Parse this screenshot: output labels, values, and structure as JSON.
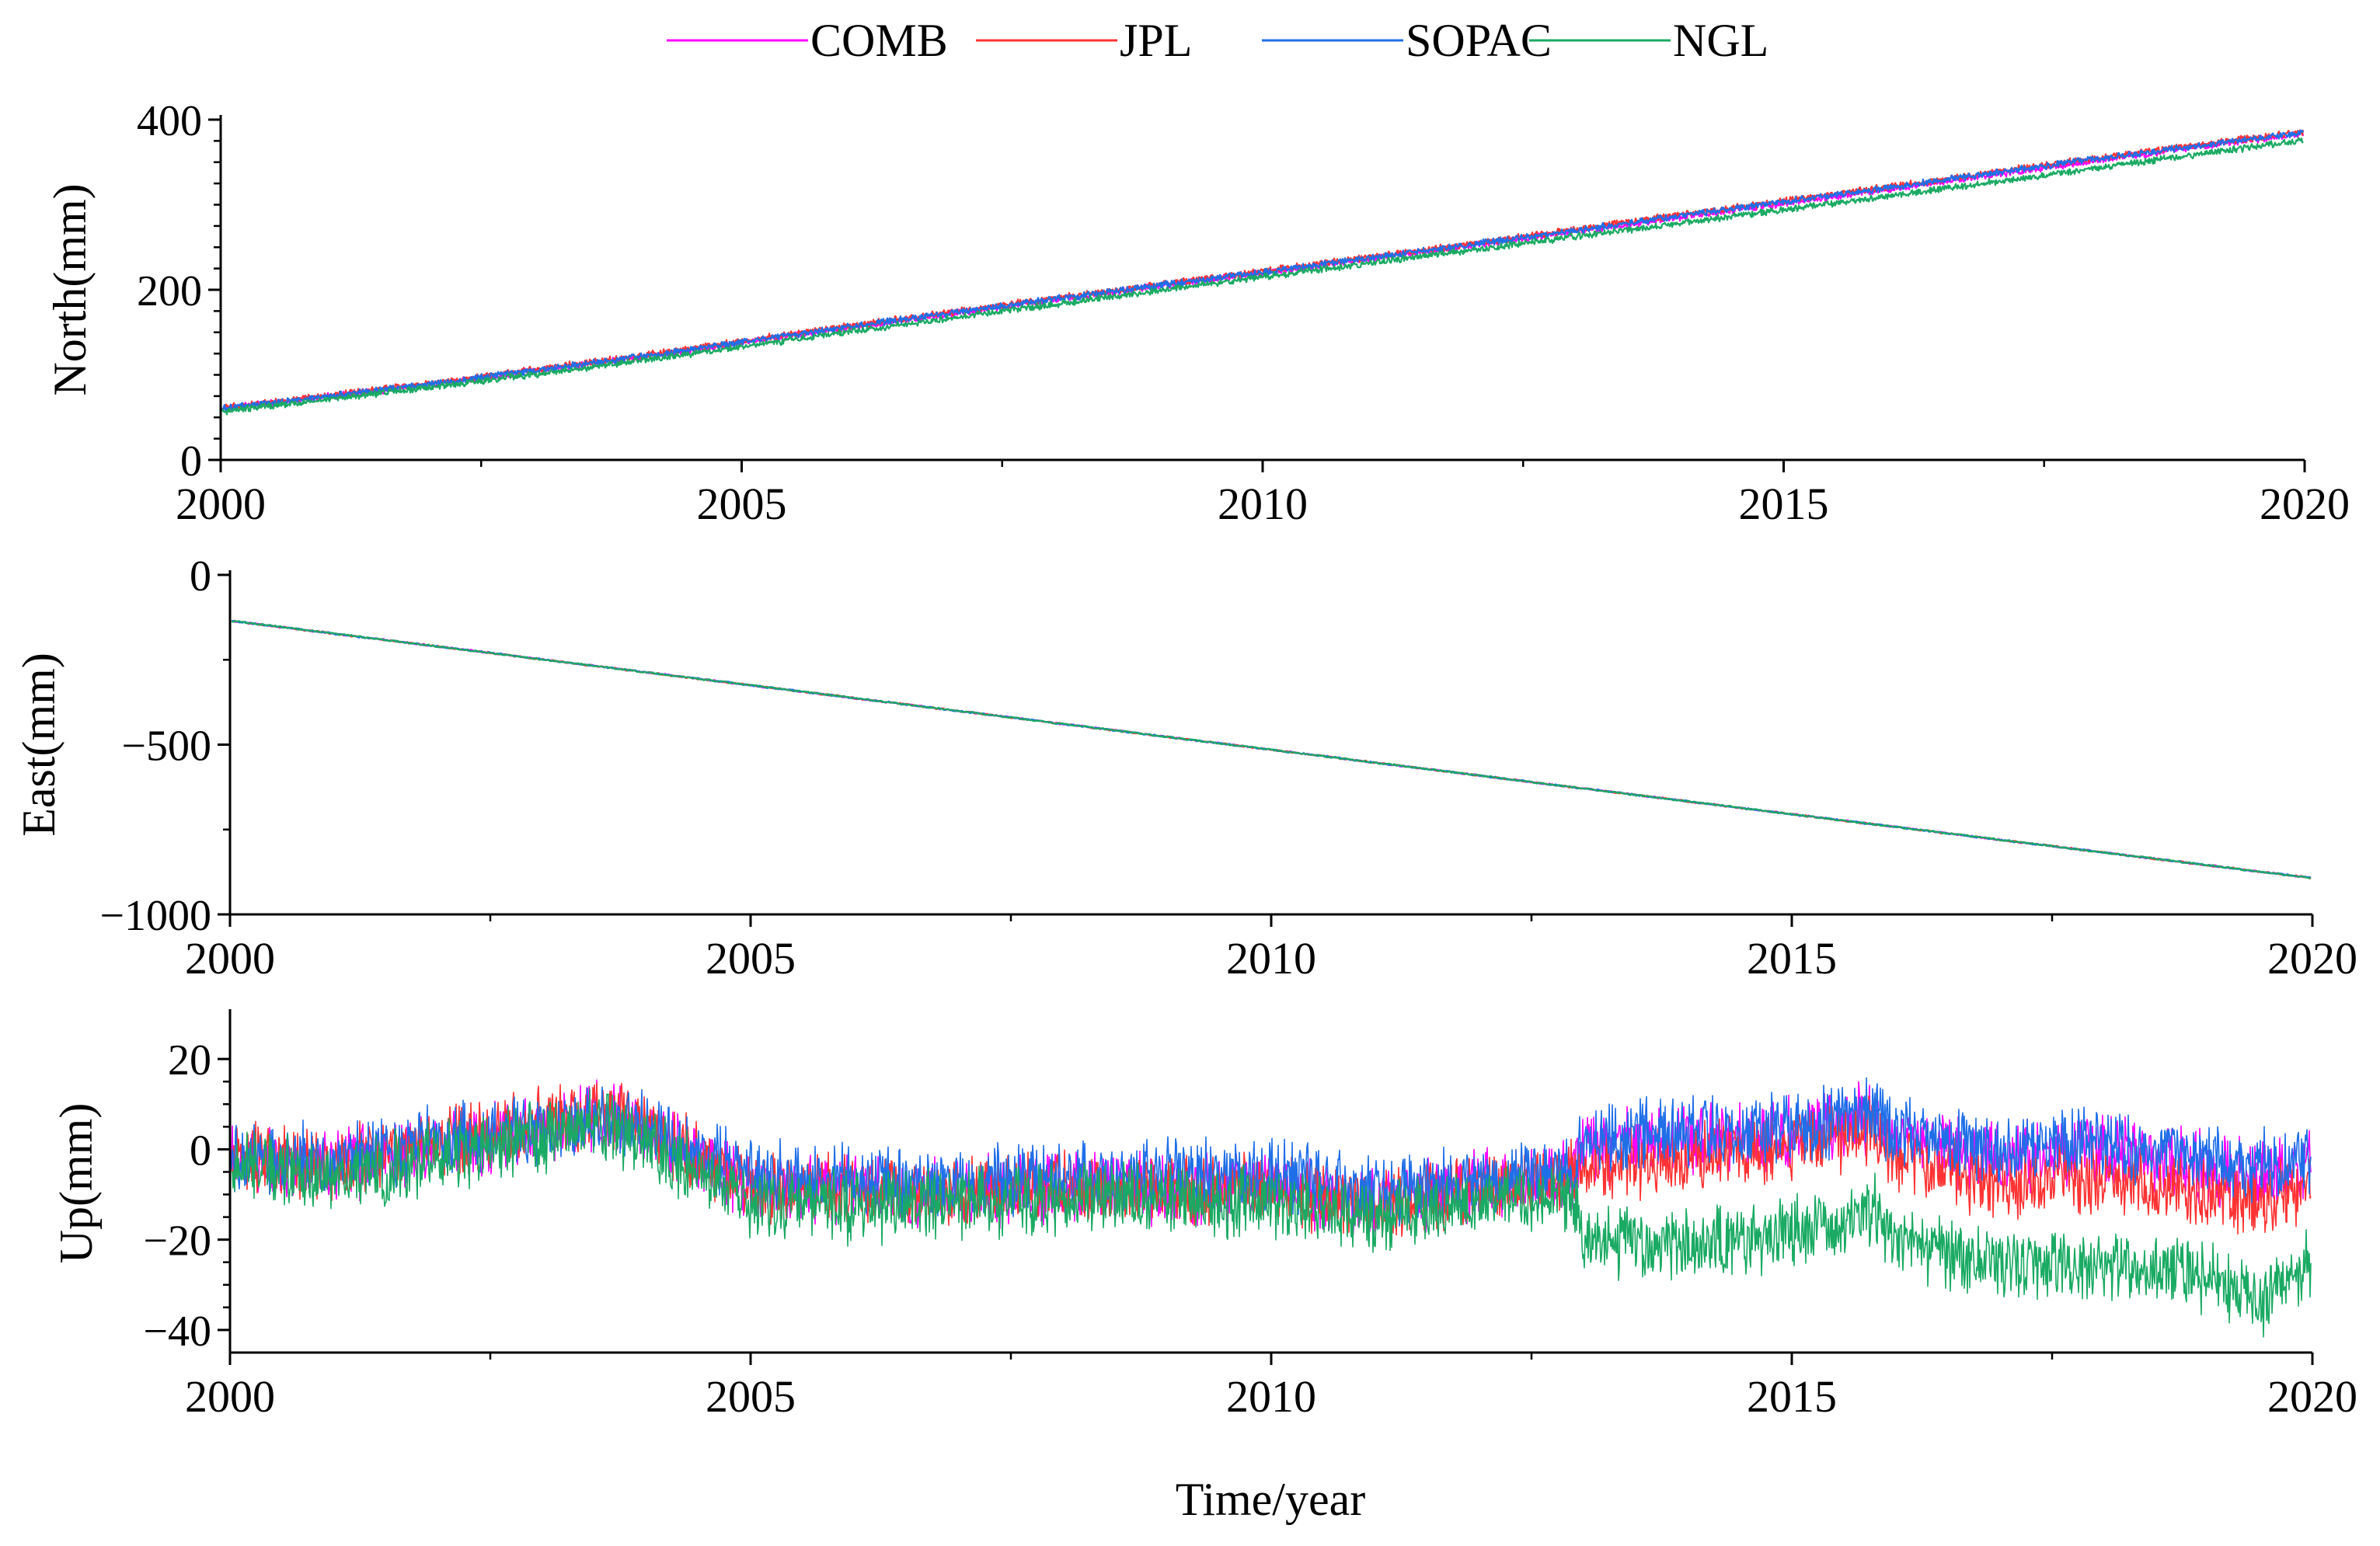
{
  "chart_data": [
    {
      "type": "line",
      "panel": "north",
      "ylabel": "North(mm)",
      "xlabel": "",
      "xlim": [
        2000,
        2020
      ],
      "ylim": [
        0,
        400
      ],
      "xticks": [
        2000,
        2005,
        2010,
        2015,
        2020
      ],
      "yticks": [
        0,
        200,
        400
      ],
      "grid": false,
      "series": [
        {
          "name": "COMB",
          "color": "#ff00ff",
          "x": [
            2000,
            2002,
            2004,
            2006,
            2008,
            2010,
            2012,
            2014,
            2016,
            2018,
            2020
          ],
          "values": [
            60,
            88,
            120,
            155,
            188,
            220,
            252,
            285,
            318,
            352,
            384
          ]
        },
        {
          "name": "JPL",
          "color": "#ff3333",
          "x": [
            2000,
            2002,
            2004,
            2006,
            2008,
            2010,
            2012,
            2014,
            2016,
            2018,
            2020
          ],
          "values": [
            61,
            90,
            122,
            157,
            190,
            222,
            254,
            288,
            321,
            355,
            386
          ]
        },
        {
          "name": "SOPAC",
          "color": "#1f6fe8",
          "x": [
            2000,
            2002,
            2004,
            2006,
            2008,
            2010,
            2012,
            2014,
            2016,
            2018,
            2020
          ],
          "values": [
            60,
            89,
            121,
            156,
            189,
            221,
            253,
            287,
            320,
            354,
            385
          ]
        },
        {
          "name": "NGL",
          "color": "#1aaa63",
          "x": [
            2000,
            2002,
            2004,
            2006,
            2008,
            2010,
            2012,
            2014,
            2016,
            2018,
            2020
          ],
          "values": [
            57,
            85,
            116,
            150,
            183,
            215,
            247,
            278,
            310,
            343,
            376
          ]
        }
      ]
    },
    {
      "type": "line",
      "panel": "east",
      "ylabel": "East(mm)",
      "xlabel": "",
      "xlim": [
        2000,
        2020
      ],
      "ylim": [
        -1000,
        0
      ],
      "xticks": [
        2000,
        2005,
        2010,
        2015,
        2020
      ],
      "yticks": [
        -1000,
        -500,
        0
      ],
      "grid": false,
      "series": [
        {
          "name": "COMB",
          "color": "#ff00ff",
          "x": [
            2000,
            2005,
            2010,
            2015,
            2020
          ],
          "values": [
            -135,
            -325,
            -515,
            -705,
            -893
          ]
        },
        {
          "name": "JPL",
          "color": "#ff3333",
          "x": [
            2000,
            2005,
            2010,
            2015,
            2020
          ],
          "values": [
            -135,
            -325,
            -515,
            -705,
            -893
          ]
        },
        {
          "name": "SOPAC",
          "color": "#1f6fe8",
          "x": [
            2000,
            2005,
            2010,
            2015,
            2020
          ],
          "values": [
            -135,
            -325,
            -515,
            -705,
            -893
          ]
        },
        {
          "name": "NGL",
          "color": "#1aaa63",
          "x": [
            2000,
            2005,
            2010,
            2015,
            2020
          ],
          "values": [
            -135,
            -325,
            -515,
            -705,
            -893
          ]
        }
      ]
    },
    {
      "type": "line",
      "panel": "up",
      "ylabel": "Up(mm)",
      "xlabel": "Time/year",
      "xlim": [
        2000,
        2020
      ],
      "ylim": [
        -45,
        30
      ],
      "xticks": [
        2000,
        2005,
        2010,
        2015,
        2020
      ],
      "yticks": [
        -40,
        -20,
        0,
        20
      ],
      "grid": false,
      "series": [
        {
          "name": "COMB",
          "color": "#ff00ff",
          "x": [
            2000,
            2001,
            2002,
            2003,
            2003.5,
            2004,
            2005,
            2006,
            2007,
            2008,
            2009,
            2010,
            2011,
            2012,
            2012.9,
            2013,
            2014,
            2015,
            2015.8,
            2016,
            2017,
            2018,
            2019,
            2019.5,
            2020
          ],
          "values": [
            -2,
            -4,
            1,
            4,
            7,
            4,
            -8,
            -9,
            -10,
            -8,
            -9,
            -8,
            -12,
            -8,
            -6,
            0,
            2,
            4,
            7,
            2,
            -2,
            0,
            -4,
            -6,
            -3
          ]
        },
        {
          "name": "JPL",
          "color": "#ff3333",
          "x": [
            2000,
            2001,
            2002,
            2003,
            2003.5,
            2004,
            2005,
            2006,
            2007,
            2008,
            2009,
            2010,
            2011,
            2012,
            2012.9,
            2013,
            2014,
            2015,
            2015.8,
            2016,
            2017,
            2018,
            2019,
            2019.5,
            2020
          ],
          "values": [
            -1,
            -4,
            2,
            6,
            9,
            5,
            -8,
            -9,
            -10,
            -8,
            -9,
            -9,
            -12,
            -9,
            -6,
            -4,
            -2,
            1,
            4,
            -2,
            -8,
            -6,
            -10,
            -12,
            -8
          ]
        },
        {
          "name": "SOPAC",
          "color": "#1f6fe8",
          "x": [
            2000,
            2001,
            2002,
            2003,
            2003.5,
            2004,
            2005,
            2006,
            2007,
            2008,
            2009,
            2010,
            2011,
            2012,
            2012.9,
            2013,
            2014,
            2015,
            2015.8,
            2016,
            2017,
            2018,
            2019,
            2019.5,
            2020
          ],
          "values": [
            -1,
            -3,
            2,
            4,
            7,
            5,
            -6,
            -7,
            -8,
            -6,
            -6,
            -6,
            -10,
            -7,
            -4,
            2,
            4,
            5,
            8,
            4,
            0,
            2,
            -2,
            -4,
            -2
          ]
        },
        {
          "name": "NGL",
          "color": "#1aaa63",
          "x": [
            2000,
            2001,
            2002,
            2003,
            2003.5,
            2004,
            2005,
            2006,
            2007,
            2008,
            2009,
            2010,
            2011,
            2012,
            2012.9,
            2013,
            2014,
            2015,
            2015.8,
            2016,
            2017,
            2018,
            2019,
            2019.5,
            2020
          ],
          "values": [
            -3,
            -7,
            -2,
            3,
            6,
            2,
            -12,
            -13,
            -12,
            -11,
            -11,
            -12,
            -15,
            -12,
            -10,
            -20,
            -22,
            -18,
            -14,
            -20,
            -26,
            -25,
            -28,
            -34,
            -25
          ]
        }
      ]
    }
  ],
  "legend": {
    "placement": "top-center",
    "entries": [
      {
        "name": "COMB",
        "color": "#ff00ff"
      },
      {
        "name": "JPL",
        "color": "#ff3333"
      },
      {
        "name": "SOPAC",
        "color": "#1f6fe8"
      },
      {
        "name": "NGL",
        "color": "#1aaa63"
      }
    ]
  }
}
